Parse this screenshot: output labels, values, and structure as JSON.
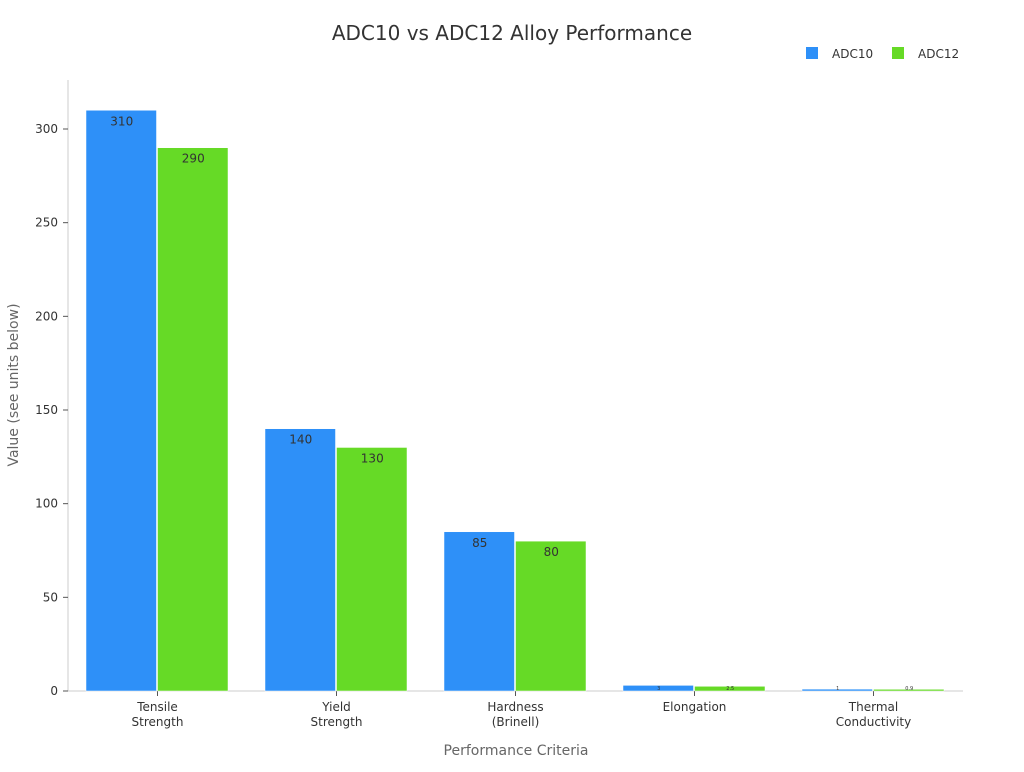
{
  "chart_data": {
    "type": "bar",
    "title": "ADC10 vs ADC12 Alloy Performance",
    "xlabel": "Performance Criteria",
    "ylabel": "Value (see units below)",
    "categories": [
      [
        "Tensile",
        "Strength"
      ],
      [
        "Yield",
        "Strength"
      ],
      [
        "Hardness",
        "(Brinell)"
      ],
      [
        "Elongation"
      ],
      [
        "Thermal",
        "Conductivity"
      ]
    ],
    "series": [
      {
        "name": "ADC10",
        "color": "#2e90f8",
        "values": [
          310,
          140,
          85,
          3,
          1
        ]
      },
      {
        "name": "ADC12",
        "color": "#66da26",
        "values": [
          290,
          130,
          80,
          2.5,
          0.9
        ]
      }
    ],
    "ylim": [
      0,
      326
    ],
    "yticks": [
      0,
      50,
      100,
      150,
      200,
      250,
      300
    ],
    "grid": false,
    "legend": "top-right"
  }
}
